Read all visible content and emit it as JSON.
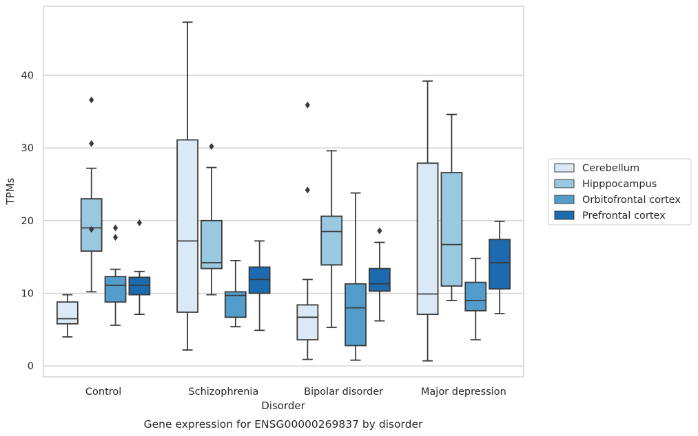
{
  "chart_data": {
    "type": "box",
    "caption": "Gene expression for ENSG00000269837 by disorder",
    "xlabel": "Disorder",
    "ylabel": "TPMs",
    "ylim": [
      -1.5,
      49.5
    ],
    "yticks": [
      0,
      10,
      20,
      30,
      40
    ],
    "grid": "horizontal",
    "legend_position": "right",
    "categories": [
      "Control",
      "Schizophrenia",
      "Bipolar disorder",
      "Major depression"
    ],
    "series": [
      {
        "name": "Cerebellum",
        "color": "#dbe9f6",
        "boxes": [
          {
            "whislo": 4.0,
            "q1": 5.8,
            "med": 6.5,
            "q3": 8.8,
            "whishi": 9.8,
            "fliers": []
          },
          {
            "whislo": 2.2,
            "q1": 7.4,
            "med": 17.2,
            "q3": 31.1,
            "whishi": 47.3,
            "fliers": []
          },
          {
            "whislo": 0.9,
            "q1": 3.6,
            "med": 6.7,
            "q3": 8.4,
            "whishi": 11.9,
            "fliers": [
              24.2,
              35.9
            ]
          },
          {
            "whislo": 0.7,
            "q1": 7.1,
            "med": 9.9,
            "q3": 27.9,
            "whishi": 39.2,
            "fliers": []
          }
        ]
      },
      {
        "name": "Hipppocampus",
        "color": "#9ac8e0",
        "boxes": [
          {
            "whislo": 10.2,
            "q1": 15.8,
            "med": 19.0,
            "q3": 23.0,
            "whishi": 27.2,
            "fliers": [
              18.8,
              30.6,
              36.6
            ]
          },
          {
            "whislo": 9.8,
            "q1": 13.4,
            "med": 14.2,
            "q3": 20.0,
            "whishi": 27.3,
            "fliers": [
              30.2
            ]
          },
          {
            "whislo": 5.3,
            "q1": 13.9,
            "med": 18.5,
            "q3": 20.6,
            "whishi": 29.6,
            "fliers": []
          },
          {
            "whislo": 9.0,
            "q1": 11.0,
            "med": 16.7,
            "q3": 26.6,
            "whishi": 34.6,
            "fliers": []
          }
        ]
      },
      {
        "name": "Orbitofrontal cortex",
        "color": "#529dcc",
        "boxes": [
          {
            "whislo": 5.6,
            "q1": 8.8,
            "med": 11.1,
            "q3": 12.3,
            "whishi": 13.3,
            "fliers": [
              17.7,
              19.0
            ]
          },
          {
            "whislo": 5.4,
            "q1": 6.7,
            "med": 9.7,
            "q3": 10.2,
            "whishi": 14.5,
            "fliers": []
          },
          {
            "whislo": 0.8,
            "q1": 2.8,
            "med": 8.0,
            "q3": 11.3,
            "whishi": 23.8,
            "fliers": []
          },
          {
            "whislo": 3.6,
            "q1": 7.6,
            "med": 9.0,
            "q3": 11.5,
            "whishi": 14.8,
            "fliers": []
          }
        ]
      },
      {
        "name": "Prefrontal cortex",
        "color": "#1c6aaf",
        "boxes": [
          {
            "whislo": 7.1,
            "q1": 9.8,
            "med": 11.1,
            "q3": 12.2,
            "whishi": 13.0,
            "fliers": [
              19.7
            ]
          },
          {
            "whislo": 4.9,
            "q1": 10.0,
            "med": 11.9,
            "q3": 13.6,
            "whishi": 17.2,
            "fliers": []
          },
          {
            "whislo": 6.2,
            "q1": 10.3,
            "med": 11.3,
            "q3": 13.4,
            "whishi": 17.0,
            "fliers": [
              18.6
            ]
          },
          {
            "whislo": 7.2,
            "q1": 10.6,
            "med": 14.2,
            "q3": 17.4,
            "whishi": 19.9,
            "fliers": []
          }
        ]
      }
    ]
  }
}
